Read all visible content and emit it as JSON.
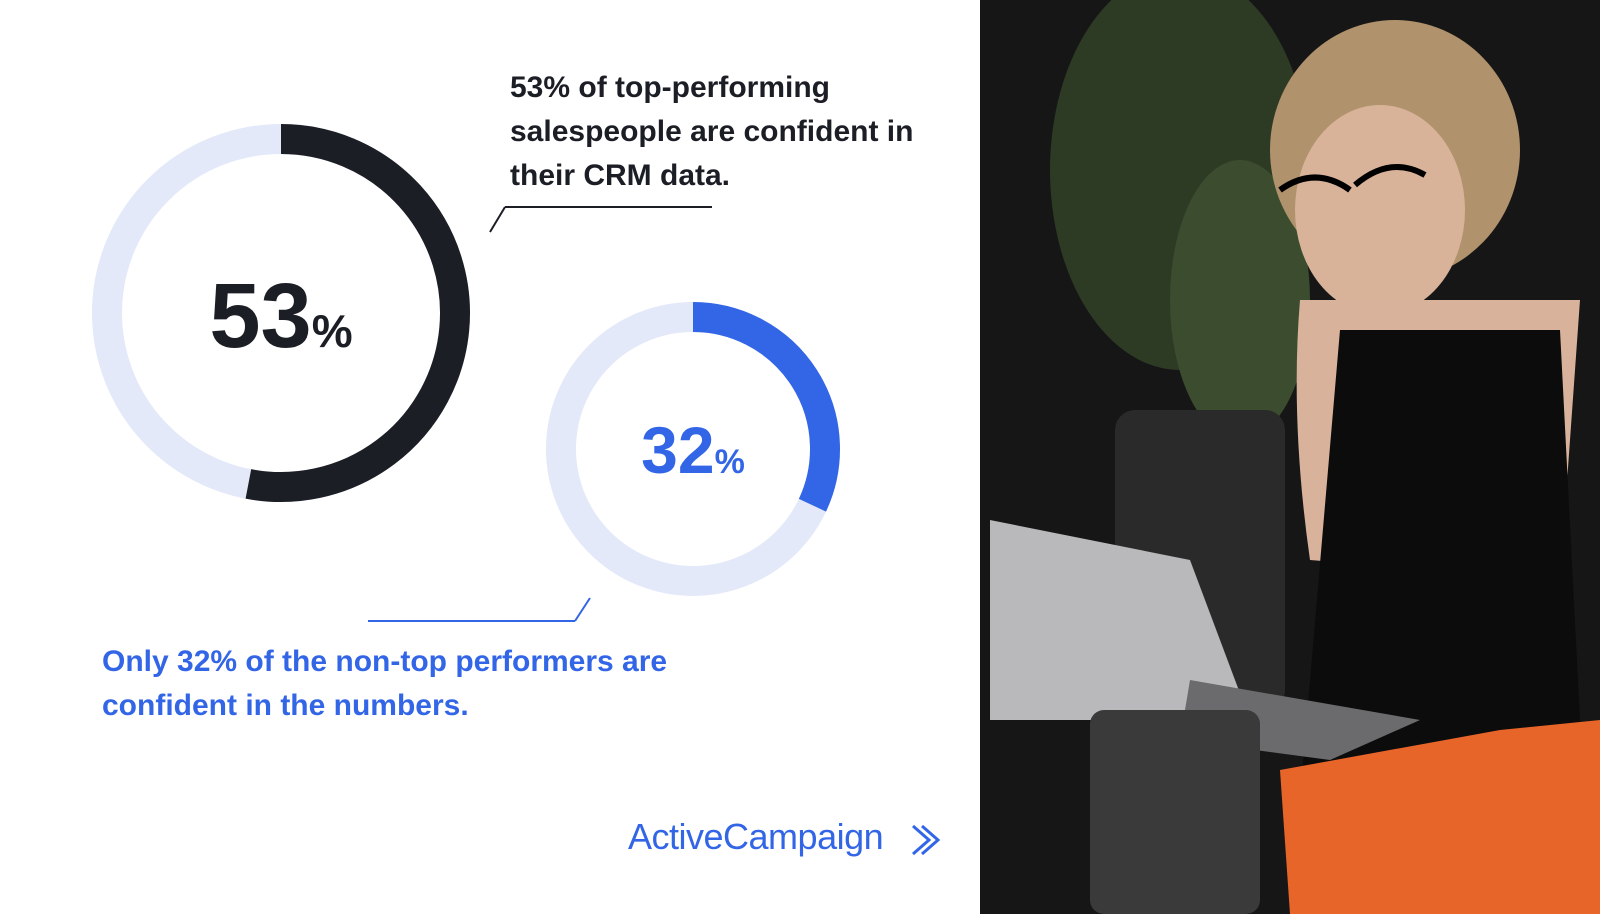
{
  "chart_data": [
    {
      "type": "donut",
      "values": [
        53
      ],
      "value_labels": [
        "53%"
      ],
      "color": "#1c1e26",
      "track_color": "#e3e9f9",
      "annotation": "53% of top-performing salespeople are confident in their CRM data."
    },
    {
      "type": "donut",
      "values": [
        32
      ],
      "value_labels": [
        "32%"
      ],
      "color": "#3366e6",
      "track_color": "#e3e9f9",
      "annotation": "Only 32% of the non-top performers are confident in the numbers."
    }
  ],
  "brand": "ActiveCampaign"
}
